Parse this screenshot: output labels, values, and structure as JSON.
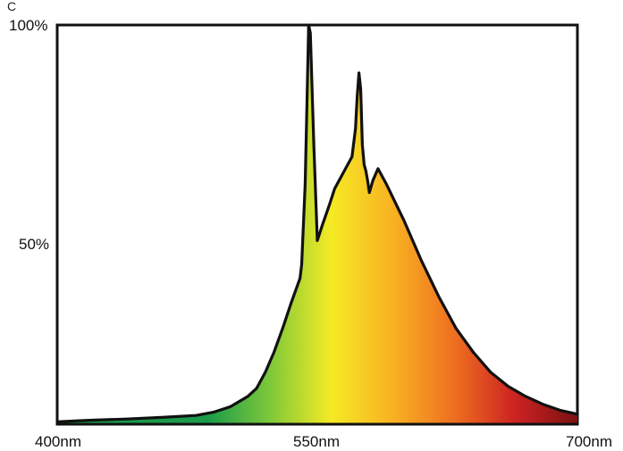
{
  "chart_data": {
    "type": "area",
    "title": "",
    "xlabel": "",
    "ylabel": "",
    "x_tick_labels": [
      "400nm",
      "550nm",
      "700nm"
    ],
    "y_tick_labels": [
      "100%",
      "50%"
    ],
    "xlim": [
      400,
      700
    ],
    "ylim": [
      0,
      100
    ],
    "grid": false,
    "fill_colors": [
      "#1a9a4a",
      "#7cc83a",
      "#f5ea24",
      "#f8b223",
      "#ee6f20",
      "#cc2222",
      "#7a1111"
    ],
    "series": [
      {
        "name": "",
        "x": [
          400,
          410,
          420,
          440,
          460,
          480,
          490,
          500,
          510,
          515,
          520,
          525,
          530,
          535,
          540,
          541,
          543,
          544,
          545,
          546,
          548,
          550,
          553,
          557,
          560,
          565,
          570,
          572,
          573,
          574,
          575,
          576,
          577,
          578,
          579,
          580,
          582,
          585,
          590,
          600,
          610,
          620,
          630,
          640,
          650,
          660,
          670,
          680,
          690,
          700
        ],
        "y": [
          0.6,
          0.8,
          1.0,
          1.3,
          1.7,
          2.2,
          3.0,
          4.4,
          7.0,
          9.0,
          13.0,
          18.0,
          24.0,
          30.5,
          36.5,
          40.0,
          60.0,
          80.0,
          100.0,
          98.0,
          70.0,
          46.0,
          50.0,
          55.0,
          59.0,
          63.0,
          67.0,
          74.0,
          82.0,
          88.0,
          84.0,
          70.0,
          65.0,
          63.5,
          61.0,
          58.0,
          61.0,
          64.0,
          60.0,
          51.0,
          41.0,
          32.0,
          24.0,
          18.0,
          13.0,
          9.5,
          7.0,
          5.0,
          3.5,
          2.5
        ]
      }
    ],
    "annotations": [
      {
        "text": "C"
      }
    ]
  }
}
